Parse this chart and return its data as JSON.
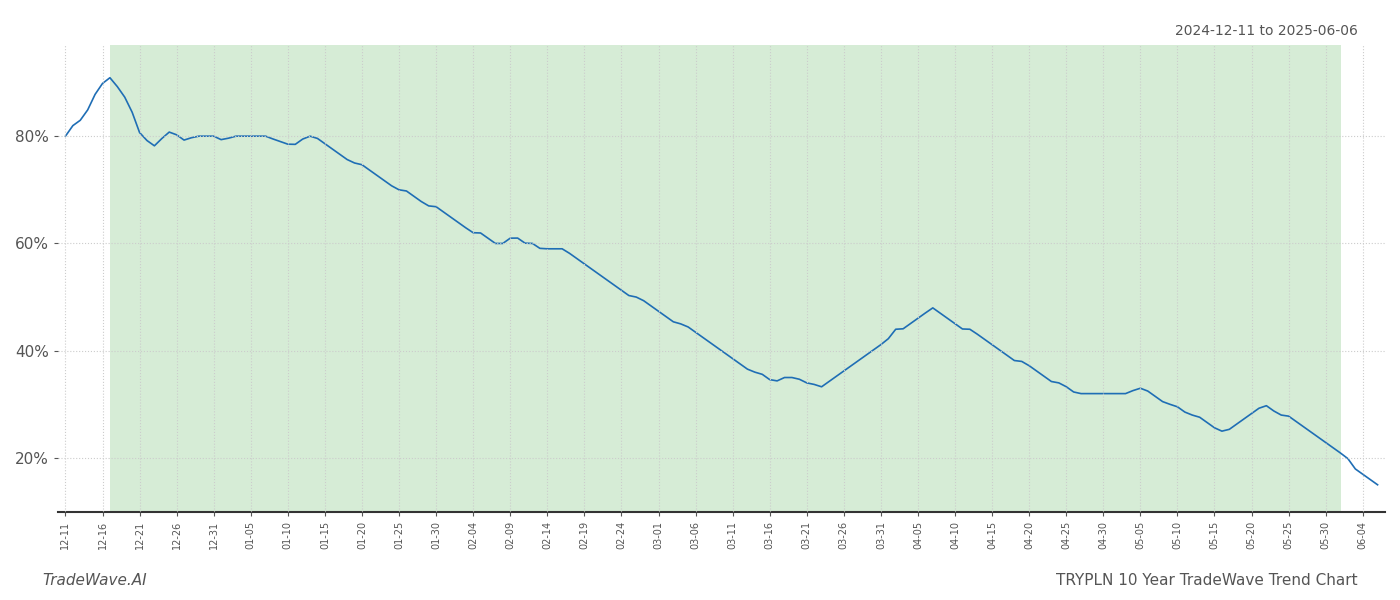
{
  "title_top_right": "2024-12-11 to 2025-06-06",
  "title_bottom_right": "TRYPLN 10 Year TradeWave Trend Chart",
  "title_bottom_left": "TradeWave.AI",
  "background_color": "#ffffff",
  "plot_bg_color": "#ffffff",
  "shaded_region_color": "#d6ecd6",
  "line_color": "#1f6eb5",
  "line_width": 1.2,
  "grid_color": "#cccccc",
  "grid_style": "dotted",
  "y_ticks": [
    20,
    40,
    60,
    80
  ],
  "y_min": 10,
  "y_max": 97,
  "start_date": "2024-12-11",
  "end_date": "2025-06-06",
  "shade_start": "2024-12-17",
  "shade_end": "2025-06-01",
  "values": [
    80,
    82,
    83,
    85,
    88,
    90,
    91,
    89,
    87,
    84,
    80,
    79,
    78,
    80,
    81,
    80,
    79,
    80,
    80,
    80,
    80,
    79,
    80,
    80,
    80,
    80,
    80,
    80,
    79,
    79,
    78,
    79,
    80,
    80,
    79,
    78,
    77,
    76,
    75,
    75,
    74,
    73,
    72,
    71,
    70,
    70,
    69,
    68,
    67,
    67,
    66,
    65,
    64,
    63,
    62,
    62,
    61,
    60,
    60,
    61,
    61,
    60,
    60,
    59,
    59,
    59,
    59,
    58,
    57,
    56,
    55,
    54,
    53,
    52,
    51,
    50,
    50,
    49,
    48,
    47,
    46,
    45,
    45,
    44,
    43,
    42,
    41,
    40,
    39,
    38,
    37,
    36,
    36,
    35,
    34,
    35,
    35,
    35,
    34,
    34,
    33,
    34,
    35,
    36,
    37,
    38,
    39,
    40,
    41,
    42,
    44,
    44,
    45,
    46,
    47,
    48,
    47,
    46,
    45,
    44,
    44,
    43,
    42,
    41,
    40,
    39,
    38,
    38,
    37,
    36,
    35,
    34,
    34,
    33,
    32,
    32,
    32,
    32,
    32,
    32,
    32,
    32,
    33,
    33,
    32,
    31,
    30,
    30,
    29,
    28,
    28,
    27,
    26,
    25,
    25,
    26,
    27,
    28,
    29,
    30,
    29,
    28,
    28,
    27,
    26,
    25,
    24,
    23,
    22,
    21,
    20,
    18,
    17,
    16,
    15
  ]
}
